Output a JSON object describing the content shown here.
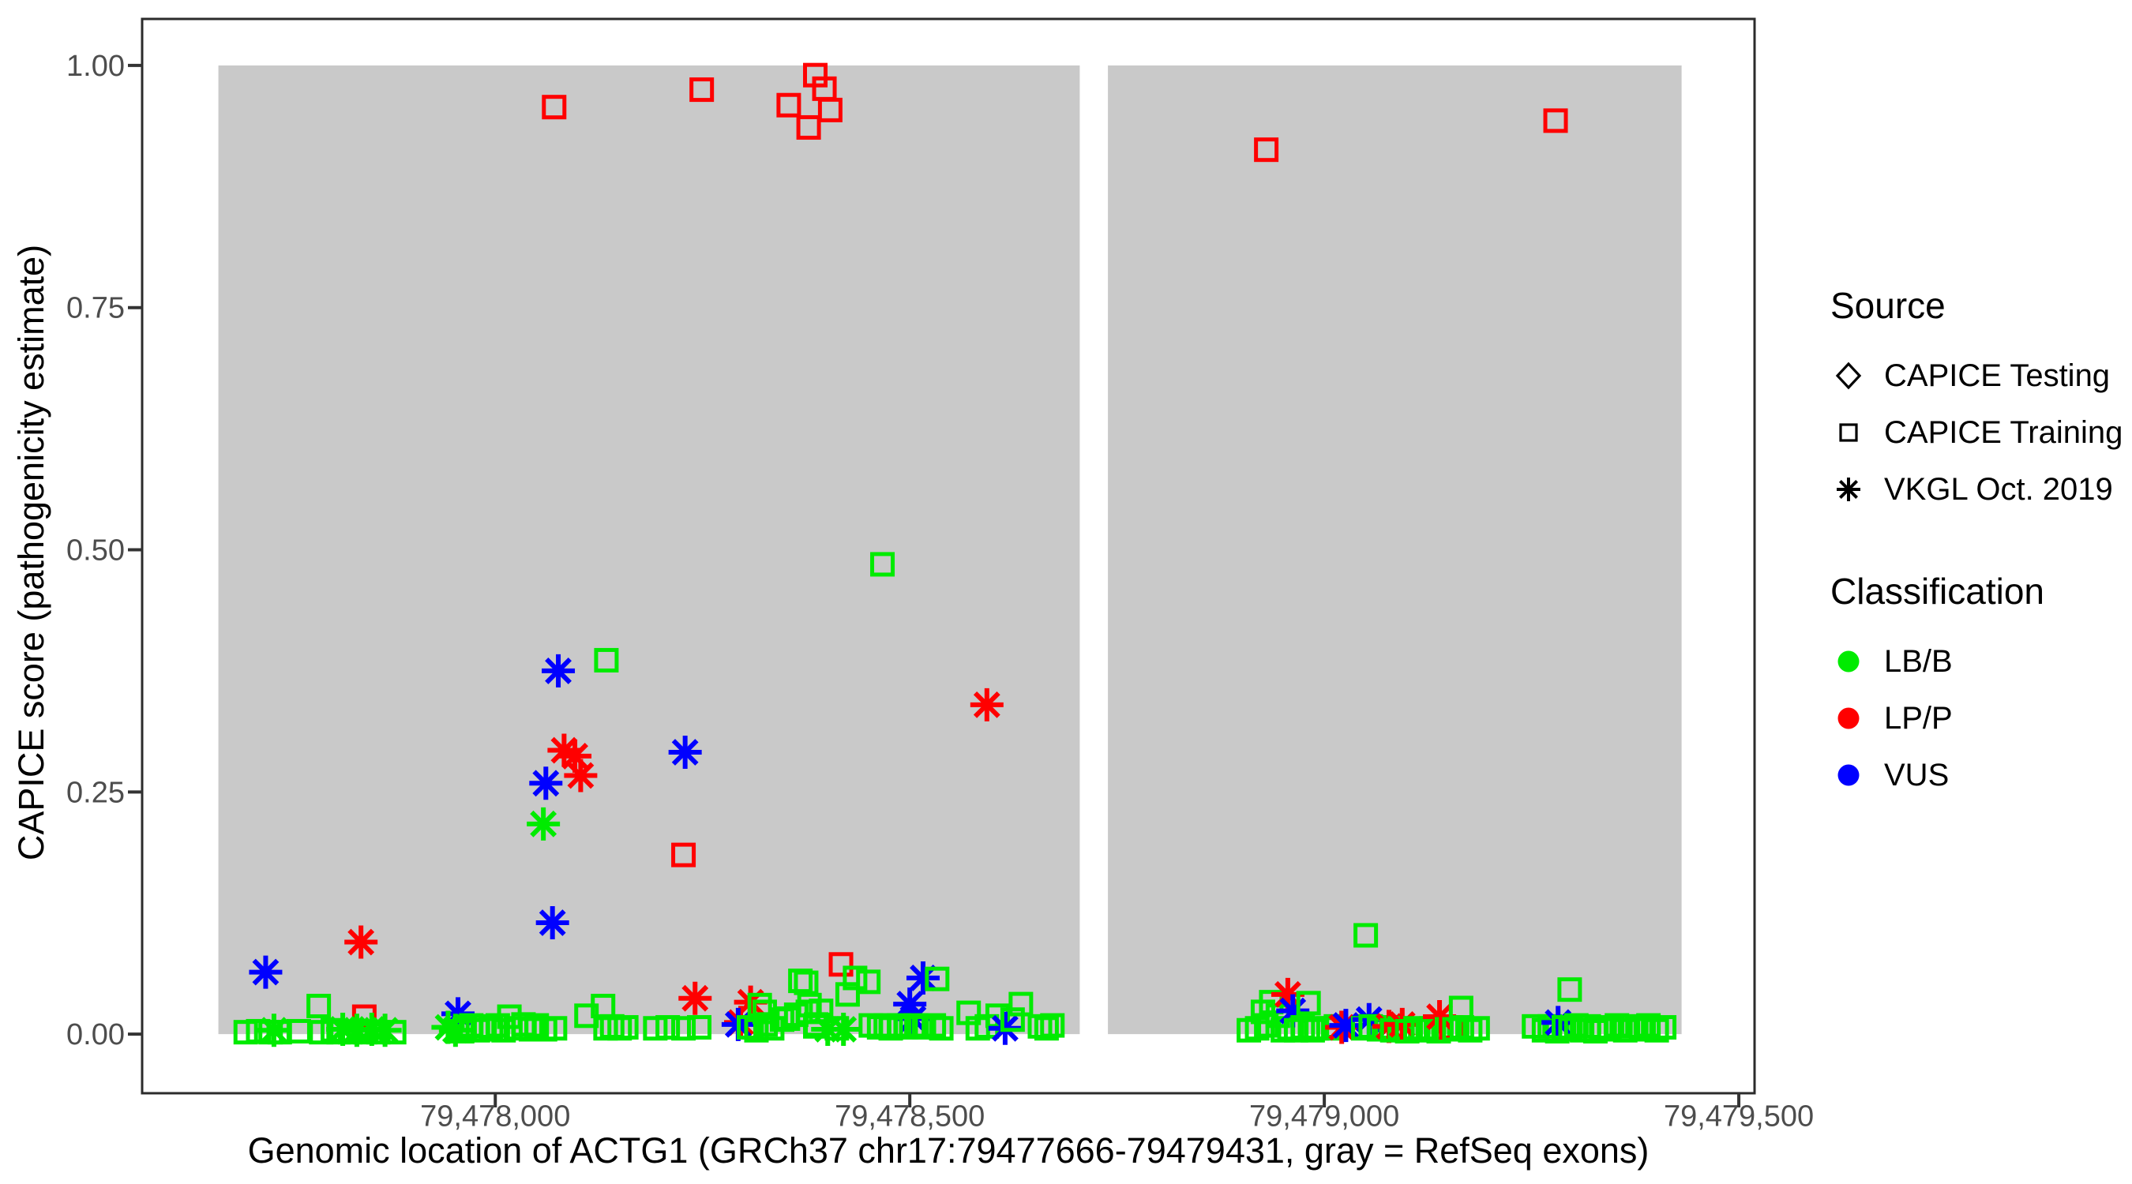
{
  "legend": {
    "source": {
      "title": "Source",
      "items": [
        {
          "label": "CAPICE Testing",
          "shape": "diamond"
        },
        {
          "label": "CAPICE Training",
          "shape": "square"
        },
        {
          "label": "VKGL Oct. 2019",
          "shape": "asterisk"
        }
      ]
    },
    "classification": {
      "title": "Classification",
      "items": [
        {
          "label": "LB/B",
          "color": "#00EB00"
        },
        {
          "label": "LP/P",
          "color": "#FF0000"
        },
        {
          "label": "VUS",
          "color": "#0000FF"
        }
      ]
    }
  },
  "chart_data": {
    "type": "scatter",
    "title": "",
    "xlabel": "Genomic location of ACTG1 (GRCh37 chr17:79477666-79479431, gray = RefSeq exons)",
    "ylabel": "CAPICE score (pathogenicity estimate)",
    "xlim": [
      79477574,
      79479519
    ],
    "ylim": [
      -0.061,
      1.048
    ],
    "grid": false,
    "legend_position": "right",
    "x_ticks": [
      {
        "value": 79478000,
        "label": "79,478,000"
      },
      {
        "value": 79478500,
        "label": "79,478,500"
      },
      {
        "value": 79479000,
        "label": "79,479,000"
      },
      {
        "value": 79479500,
        "label": "79,479,500"
      }
    ],
    "y_ticks": [
      {
        "value": 0.0,
        "label": "0.00"
      },
      {
        "value": 0.25,
        "label": "0.25"
      },
      {
        "value": 0.5,
        "label": "0.50"
      },
      {
        "value": 0.75,
        "label": "0.75"
      },
      {
        "value": 1.0,
        "label": "1.00"
      }
    ],
    "refseq_exons": [
      [
        79477666,
        79478705
      ],
      [
        79478739,
        79479431
      ]
    ],
    "exon_fill": "#C9C9C9",
    "classification_colors": {
      "LB/B": "#00EB00",
      "LP/P": "#FF0000",
      "VUS": "#0000FF"
    },
    "classification_codes": {
      "G": "LB/B",
      "R": "LP/P",
      "B": "VUS"
    },
    "shape_codes": {
      "sq": "square (CAPICE Training)",
      "as": "asterisk (VKGL Oct. 2019)",
      "di": "diamond (CAPICE Testing)"
    },
    "point_format": [
      "genomic_position",
      "capice_score",
      "classification_code",
      "shape_code"
    ],
    "points": [
      [
        79478071,
        0.957,
        "R",
        "sq"
      ],
      [
        79478249,
        0.975,
        "R",
        "sq"
      ],
      [
        79478354,
        0.959,
        "R",
        "sq"
      ],
      [
        79478378,
        0.936,
        "R",
        "sq"
      ],
      [
        79478386,
        0.99,
        "R",
        "sq"
      ],
      [
        79478397,
        0.976,
        "R",
        "sq"
      ],
      [
        79478404,
        0.954,
        "R",
        "sq"
      ],
      [
        79478930,
        0.913,
        "R",
        "sq"
      ],
      [
        79479279,
        0.943,
        "R",
        "sq"
      ],
      [
        79478467,
        0.485,
        "G",
        "sq"
      ],
      [
        79478134,
        0.386,
        "G",
        "sq"
      ],
      [
        79478076,
        0.375,
        "B",
        "as"
      ],
      [
        79478593,
        0.34,
        "R",
        "as"
      ],
      [
        79478083,
        0.293,
        "R",
        "as"
      ],
      [
        79478096,
        0.287,
        "R",
        "as"
      ],
      [
        79478229,
        0.291,
        "B",
        "as"
      ],
      [
        79478103,
        0.267,
        "R",
        "as"
      ],
      [
        79478061,
        0.259,
        "B",
        "as"
      ],
      [
        79478058,
        0.217,
        "G",
        "as"
      ],
      [
        79478227,
        0.185,
        "R",
        "sq"
      ],
      [
        79478069,
        0.115,
        "B",
        "as"
      ],
      [
        79477838,
        0.095,
        "R",
        "as"
      ],
      [
        79479050,
        0.102,
        "G",
        "sq"
      ],
      [
        79477723,
        0.064,
        "B",
        "as"
      ],
      [
        79477787,
        0.029,
        "G",
        "sq"
      ],
      [
        79477842,
        0.018,
        "R",
        "sq"
      ],
      [
        79477955,
        0.021,
        "B",
        "as"
      ],
      [
        79477943,
        0.007,
        "G",
        "as"
      ],
      [
        79477699,
        0.002,
        "G",
        "sq"
      ],
      [
        79477714,
        0.003,
        "G",
        "sq"
      ],
      [
        79477729,
        0.002,
        "G",
        "sq"
      ],
      [
        79477733,
        0.004,
        "G",
        "as"
      ],
      [
        79477740,
        0.002,
        "G",
        "sq"
      ],
      [
        79477763,
        0.003,
        "G",
        "sq"
      ],
      [
        79477790,
        0.002,
        "G",
        "sq"
      ],
      [
        79477804,
        0.004,
        "G",
        "sq"
      ],
      [
        79477811,
        0.002,
        "G",
        "sq"
      ],
      [
        79477816,
        0.005,
        "G",
        "as"
      ],
      [
        79477825,
        0.002,
        "G",
        "sq"
      ],
      [
        79477833,
        0.004,
        "G",
        "as"
      ],
      [
        79477843,
        0.002,
        "G",
        "sq"
      ],
      [
        79477851,
        0.005,
        "G",
        "as"
      ],
      [
        79477859,
        0.002,
        "G",
        "sq"
      ],
      [
        79477867,
        0.004,
        "G",
        "as"
      ],
      [
        79477878,
        0.002,
        "G",
        "sq"
      ],
      [
        79477952,
        0.004,
        "G",
        "as"
      ],
      [
        79477960,
        0.003,
        "G",
        "sq"
      ],
      [
        79477963,
        0.005,
        "G",
        "sq"
      ],
      [
        79477971,
        0.009,
        "G",
        "sq"
      ],
      [
        79477979,
        0.004,
        "G",
        "sq"
      ],
      [
        79477987,
        0.008,
        "G",
        "sq"
      ],
      [
        79477995,
        0.005,
        "G",
        "sq"
      ],
      [
        79478003,
        0.009,
        "G",
        "sq"
      ],
      [
        79478010,
        0.004,
        "G",
        "sq"
      ],
      [
        79478017,
        0.018,
        "G",
        "sq"
      ],
      [
        79478025,
        0.006,
        "G",
        "sq"
      ],
      [
        79478034,
        0.01,
        "G",
        "sq"
      ],
      [
        79478043,
        0.005,
        "G",
        "sq"
      ],
      [
        79478050,
        0.009,
        "G",
        "sq"
      ],
      [
        79478060,
        0.005,
        "G",
        "sq"
      ],
      [
        79478072,
        0.006,
        "G",
        "sq"
      ],
      [
        79478110,
        0.019,
        "G",
        "sq"
      ],
      [
        79478130,
        0.029,
        "G",
        "sq"
      ],
      [
        79478133,
        0.006,
        "G",
        "sq"
      ],
      [
        79478141,
        0.008,
        "G",
        "sq"
      ],
      [
        79478150,
        0.006,
        "G",
        "sq"
      ],
      [
        79478158,
        0.007,
        "G",
        "sq"
      ],
      [
        79478193,
        0.006,
        "G",
        "sq"
      ],
      [
        79478208,
        0.007,
        "G",
        "sq"
      ],
      [
        79478227,
        0.006,
        "G",
        "sq"
      ],
      [
        79478246,
        0.007,
        "G",
        "sq"
      ],
      [
        79478241,
        0.037,
        "R",
        "as"
      ],
      [
        79478308,
        0.033,
        "R",
        "as"
      ],
      [
        79478296,
        0.012,
        "R",
        "as"
      ],
      [
        79478293,
        0.01,
        "B",
        "as"
      ],
      [
        79478306,
        0.007,
        "G",
        "sq"
      ],
      [
        79478315,
        0.004,
        "G",
        "sq"
      ],
      [
        79478319,
        0.03,
        "G",
        "sq"
      ],
      [
        79478325,
        0.023,
        "G",
        "sq"
      ],
      [
        79478326,
        0.01,
        "G",
        "sq"
      ],
      [
        79478334,
        0.006,
        "G",
        "sq"
      ],
      [
        79478346,
        0.015,
        "G",
        "sq"
      ],
      [
        79478353,
        0.016,
        "G",
        "sq"
      ],
      [
        79478363,
        0.02,
        "G",
        "sq"
      ],
      [
        79478368,
        0.055,
        "G",
        "sq"
      ],
      [
        79478379,
        0.03,
        "G",
        "sq"
      ],
      [
        79478387,
        0.01,
        "G",
        "sq"
      ],
      [
        79478375,
        0.053,
        "G",
        "sq"
      ],
      [
        79478417,
        0.072,
        "R",
        "sq"
      ],
      [
        79478434,
        0.058,
        "G",
        "sq"
      ],
      [
        79478516,
        0.058,
        "B",
        "as"
      ],
      [
        79478533,
        0.057,
        "G",
        "sq"
      ],
      [
        79478377,
        0.023,
        "G",
        "sq"
      ],
      [
        79478393,
        0.024,
        "G",
        "sq"
      ],
      [
        79478425,
        0.041,
        "G",
        "sq"
      ],
      [
        79478450,
        0.054,
        "G",
        "sq"
      ],
      [
        79478500,
        0.031,
        "B",
        "as"
      ],
      [
        79478504,
        0.016,
        "B",
        "as"
      ],
      [
        79478386,
        0.008,
        "G",
        "sq"
      ],
      [
        79478401,
        0.005,
        "G",
        "as"
      ],
      [
        79478412,
        0.006,
        "G",
        "sq"
      ],
      [
        79478420,
        0.005,
        "G",
        "as"
      ],
      [
        79478453,
        0.009,
        "G",
        "sq"
      ],
      [
        79478463,
        0.007,
        "G",
        "sq"
      ],
      [
        79478471,
        0.009,
        "G",
        "sq"
      ],
      [
        79478477,
        0.006,
        "G",
        "sq"
      ],
      [
        79478487,
        0.009,
        "G",
        "sq"
      ],
      [
        79478495,
        0.007,
        "G",
        "sq"
      ],
      [
        79478508,
        0.009,
        "G",
        "sq"
      ],
      [
        79478517,
        0.007,
        "G",
        "sq"
      ],
      [
        79478529,
        0.009,
        "G",
        "sq"
      ],
      [
        79478538,
        0.006,
        "G",
        "sq"
      ],
      [
        79478571,
        0.022,
        "G",
        "sq"
      ],
      [
        79478582,
        0.006,
        "G",
        "sq"
      ],
      [
        79478593,
        0.008,
        "G",
        "sq"
      ],
      [
        79478606,
        0.019,
        "G",
        "sq"
      ],
      [
        79478615,
        0.006,
        "B",
        "as"
      ],
      [
        79478624,
        0.015,
        "G",
        "sq"
      ],
      [
        79478634,
        0.031,
        "G",
        "sq"
      ],
      [
        79478657,
        0.008,
        "G",
        "sq"
      ],
      [
        79478665,
        0.006,
        "G",
        "sq"
      ],
      [
        79478672,
        0.009,
        "G",
        "sq"
      ],
      [
        79478909,
        0.004,
        "G",
        "sq"
      ],
      [
        79478919,
        0.006,
        "G",
        "sq"
      ],
      [
        79478926,
        0.023,
        "G",
        "sq"
      ],
      [
        79478930,
        0.009,
        "G",
        "sq"
      ],
      [
        79478936,
        0.033,
        "G",
        "sq"
      ],
      [
        79478944,
        0.019,
        "G",
        "sq"
      ],
      [
        79478950,
        0.004,
        "G",
        "sq"
      ],
      [
        79478956,
        0.041,
        "R",
        "as"
      ],
      [
        79478958,
        0.006,
        "G",
        "sq"
      ],
      [
        79478962,
        0.024,
        "B",
        "as"
      ],
      [
        79478966,
        0.004,
        "G",
        "sq"
      ],
      [
        79478974,
        0.007,
        "G",
        "sq"
      ],
      [
        79478981,
        0.032,
        "G",
        "sq"
      ],
      [
        79478986,
        0.004,
        "G",
        "sq"
      ],
      [
        79478991,
        0.006,
        "G",
        "sq"
      ],
      [
        79479005,
        0.006,
        "G",
        "sq"
      ],
      [
        79479014,
        0.008,
        "G",
        "sq"
      ],
      [
        79479021,
        0.007,
        "R",
        "as"
      ],
      [
        79479026,
        0.009,
        "B",
        "as"
      ],
      [
        79479047,
        0.006,
        "G",
        "sq"
      ],
      [
        79479054,
        0.015,
        "B",
        "as"
      ],
      [
        79479056,
        0.008,
        "G",
        "sq"
      ],
      [
        79479066,
        0.005,
        "G",
        "sq"
      ],
      [
        79479075,
        0.007,
        "G",
        "sq"
      ],
      [
        79479078,
        0.008,
        "R",
        "as"
      ],
      [
        79479082,
        0.004,
        "G",
        "sq"
      ],
      [
        79479091,
        0.006,
        "G",
        "sq"
      ],
      [
        79479094,
        0.01,
        "R",
        "as"
      ],
      [
        79479100,
        0.003,
        "G",
        "sq"
      ],
      [
        79479110,
        0.006,
        "G",
        "sq"
      ],
      [
        79479119,
        0.004,
        "G",
        "sq"
      ],
      [
        79479129,
        0.006,
        "G",
        "sq"
      ],
      [
        79479138,
        0.003,
        "G",
        "sq"
      ],
      [
        79479139,
        0.018,
        "R",
        "as"
      ],
      [
        79479148,
        0.005,
        "G",
        "sq"
      ],
      [
        79479153,
        0.007,
        "R",
        "sq"
      ],
      [
        79479157,
        0.005,
        "G",
        "sq"
      ],
      [
        79479165,
        0.027,
        "G",
        "sq"
      ],
      [
        79479166,
        0.007,
        "G",
        "sq"
      ],
      [
        79479176,
        0.004,
        "G",
        "sq"
      ],
      [
        79479185,
        0.006,
        "G",
        "sq"
      ],
      [
        79479253,
        0.008,
        "G",
        "sq"
      ],
      [
        79479265,
        0.004,
        "G",
        "sq"
      ],
      [
        79479272,
        0.008,
        "G",
        "sq"
      ],
      [
        79479281,
        0.003,
        "G",
        "sq"
      ],
      [
        79479282,
        0.012,
        "B",
        "as"
      ],
      [
        79479289,
        0.007,
        "G",
        "sq"
      ],
      [
        79479296,
        0.046,
        "G",
        "sq"
      ],
      [
        79479297,
        0.005,
        "G",
        "sq"
      ],
      [
        79479304,
        0.009,
        "G",
        "sq"
      ],
      [
        79479311,
        0.004,
        "G",
        "sq"
      ],
      [
        79479319,
        0.008,
        "G",
        "sq"
      ],
      [
        79479327,
        0.003,
        "G",
        "sq"
      ],
      [
        79479334,
        0.007,
        "G",
        "sq"
      ],
      [
        79479344,
        0.005,
        "G",
        "sq"
      ],
      [
        79479353,
        0.009,
        "G",
        "sq"
      ],
      [
        79479363,
        0.004,
        "G",
        "sq"
      ],
      [
        79479372,
        0.008,
        "G",
        "sq"
      ],
      [
        79479382,
        0.005,
        "G",
        "sq"
      ],
      [
        79479391,
        0.009,
        "G",
        "sq"
      ],
      [
        79479401,
        0.004,
        "G",
        "sq"
      ],
      [
        79479410,
        0.007,
        "G",
        "sq"
      ]
    ]
  },
  "style": {
    "panel_border": "#2B2B2B",
    "tick_color": "#333333",
    "tick_label_color": "#4D4D4D",
    "background": "#FFFFFF"
  }
}
